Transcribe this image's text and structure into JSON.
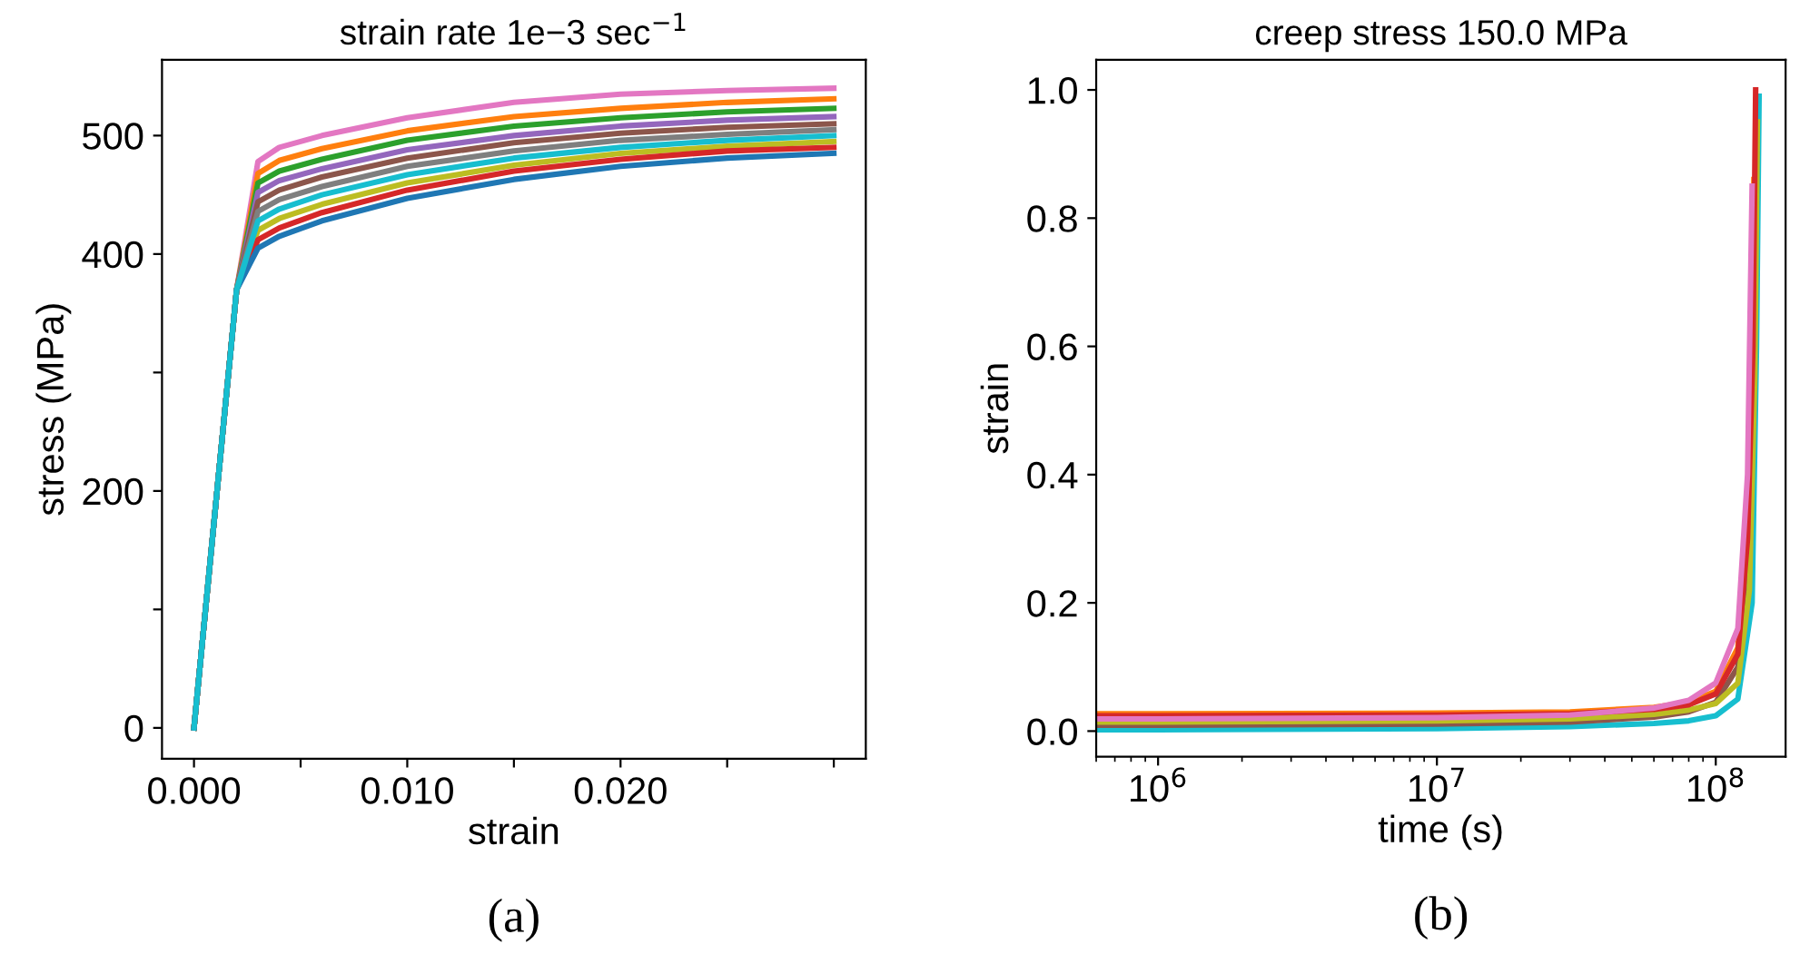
{
  "chart_data": [
    {
      "type": "line",
      "title": "strain rate 1e−3 sec$^{−1}$",
      "xlabel": "strain",
      "ylabel": "stress (MPa)",
      "annotations": [
        "(a)"
      ],
      "xlim": [
        -0.0015,
        0.0315
      ],
      "ylim": [
        -26,
        564
      ],
      "xticks": [
        {
          "value": 0,
          "label": "0.000"
        },
        {
          "value": 0.005,
          "label": null
        },
        {
          "value": 0.01,
          "label": "0.010"
        },
        {
          "value": 0.015,
          "label": null
        },
        {
          "value": 0.02,
          "label": "0.020"
        },
        {
          "value": 0.025,
          "label": null
        },
        {
          "value": 0.03,
          "label": null
        }
      ],
      "yticks": [
        0,
        {
          "value": 100,
          "label": null
        },
        200,
        {
          "value": 300,
          "label": null
        },
        400,
        500
      ],
      "x": [
        0,
        0.002,
        0.003,
        0.004,
        0.006,
        0.01,
        0.015,
        0.02,
        0.025,
        0.03
      ],
      "series": [
        {
          "color": "#e377c2",
          "values": [
            0,
            370,
            478,
            490,
            500,
            515,
            528,
            535,
            538,
            540
          ]
        },
        {
          "color": "#ff7f0e",
          "values": [
            0,
            370,
            468,
            479,
            489,
            504,
            516,
            523,
            528,
            531
          ]
        },
        {
          "color": "#2ca02c",
          "values": [
            0,
            370,
            460,
            470,
            480,
            496,
            508,
            515,
            520,
            523
          ]
        },
        {
          "color": "#9467bd",
          "values": [
            0,
            370,
            452,
            462,
            472,
            488,
            500,
            508,
            513,
            516
          ]
        },
        {
          "color": "#8c564b",
          "values": [
            0,
            370,
            444,
            454,
            465,
            481,
            494,
            502,
            507,
            510
          ]
        },
        {
          "color": "#7f7f7f",
          "values": [
            0,
            370,
            436,
            446,
            457,
            474,
            487,
            496,
            501,
            505
          ]
        },
        {
          "color": "#bcbd22",
          "values": [
            0,
            370,
            420,
            430,
            442,
            460,
            475,
            485,
            491,
            495
          ]
        },
        {
          "color": "#d62728",
          "values": [
            0,
            370,
            412,
            422,
            435,
            454,
            470,
            480,
            487,
            490
          ]
        },
        {
          "color": "#1f77b4",
          "values": [
            0,
            370,
            405,
            415,
            428,
            447,
            463,
            474,
            481,
            485
          ]
        },
        {
          "color": "#17becf",
          "values": [
            0,
            370,
            428,
            438,
            450,
            467,
            481,
            490,
            496,
            500
          ]
        }
      ]
    },
    {
      "type": "line",
      "title": "creep stress 150.0 MPa",
      "xlabel": "time (s)",
      "ylabel": "strain",
      "annotations": [
        "(b)"
      ],
      "log": "x",
      "xlim": [
        600000,
        178000000
      ],
      "ylim": [
        -0.04,
        1.047
      ],
      "xticks": [
        {
          "value": 1000000,
          "label": "10$^{6}$"
        },
        {
          "value": 10000000,
          "label": "10$^{7}$"
        },
        {
          "value": 100000000,
          "label": "10$^{8}$"
        }
      ],
      "yticks": [
        {
          "value": 0,
          "label": "0.0"
        },
        {
          "value": 0.2,
          "label": "0.2"
        },
        {
          "value": 0.4,
          "label": "0.4"
        },
        {
          "value": 0.6,
          "label": "0.6"
        },
        {
          "value": 0.8,
          "label": "0.8"
        },
        {
          "value": 1.0,
          "label": "1.0"
        }
      ],
      "series": [
        {
          "color": "#17becf",
          "x": [
            600000,
            1000000,
            10000000,
            30000000,
            60000000,
            80000000,
            100000000,
            120000000,
            135000000,
            140000000,
            143000000
          ],
          "values": [
            0.002,
            0.002,
            0.004,
            0.007,
            0.012,
            0.016,
            0.024,
            0.05,
            0.2,
            0.6,
            0.99
          ]
        },
        {
          "color": "#8c564b",
          "x": [
            600000,
            1000000,
            10000000,
            30000000,
            60000000,
            80000000,
            100000000,
            120000000,
            130000000,
            136000000,
            140000000
          ],
          "values": [
            0.009,
            0.009,
            0.011,
            0.014,
            0.022,
            0.03,
            0.045,
            0.1,
            0.27,
            0.55,
            0.9
          ]
        },
        {
          "color": "#bcbd22",
          "x": [
            600000,
            1000000,
            10000000,
            30000000,
            60000000,
            80000000,
            100000000,
            120000000,
            132000000,
            138000000,
            141000000
          ],
          "values": [
            0.014,
            0.014,
            0.016,
            0.019,
            0.026,
            0.033,
            0.043,
            0.075,
            0.22,
            0.55,
            0.95
          ]
        },
        {
          "color": "#ff7f0e",
          "x": [
            600000,
            1000000,
            10000000,
            30000000,
            60000000,
            80000000,
            100000000,
            120000000,
            130000000,
            135000000,
            137000000
          ],
          "values": [
            0.027,
            0.027,
            0.028,
            0.03,
            0.037,
            0.045,
            0.062,
            0.13,
            0.32,
            0.6,
            0.86
          ]
        },
        {
          "color": "#d62728",
          "x": [
            600000,
            1000000,
            10000000,
            30000000,
            60000000,
            80000000,
            100000000,
            120000000,
            130000000,
            136000000,
            139000000
          ],
          "values": [
            0.024,
            0.024,
            0.025,
            0.027,
            0.034,
            0.041,
            0.058,
            0.12,
            0.3,
            0.6,
            1.0
          ]
        },
        {
          "color": "#e377c2",
          "x": [
            600000,
            1000000,
            10000000,
            30000000,
            60000000,
            80000000,
            100000000,
            120000000,
            130000000,
            135000000
          ],
          "values": [
            0.019,
            0.019,
            0.021,
            0.025,
            0.036,
            0.048,
            0.075,
            0.16,
            0.4,
            0.85
          ]
        }
      ]
    }
  ]
}
